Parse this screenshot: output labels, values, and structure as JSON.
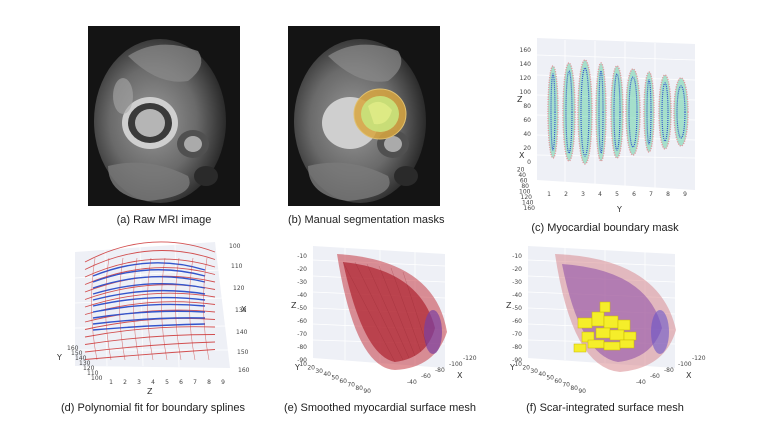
{
  "panels": [
    {
      "id": "a",
      "caption": "(a) Raw MRI image"
    },
    {
      "id": "b",
      "caption": "(b) Manual segmentation masks"
    },
    {
      "id": "c",
      "caption": "(c) Myocardial boundary mask",
      "axes": {
        "z_label": "Z",
        "x_label": "X",
        "y_label": "Y",
        "z_ticks": [
          "160",
          "140",
          "120",
          "100",
          "80",
          "60",
          "40",
          "20",
          "0"
        ],
        "x_ticks": [
          "20",
          "40",
          "60",
          "80",
          "100",
          "120",
          "140",
          "160"
        ],
        "y_ticks": [
          "1",
          "2",
          "3",
          "4",
          "5",
          "6",
          "7",
          "8",
          "9"
        ]
      }
    },
    {
      "id": "d",
      "caption": "(d) Polynomial fit for boundary splines",
      "axes": {
        "x_label": "X",
        "y_label": "Y",
        "z_label": "Z",
        "x_ticks": [
          "100",
          "110",
          "120",
          "130",
          "140",
          "150",
          "160"
        ],
        "y_ticks": [
          "160",
          "150",
          "140",
          "130",
          "120",
          "110",
          "100"
        ],
        "z_ticks": [
          "1",
          "2",
          "3",
          "4",
          "5",
          "6",
          "7",
          "8",
          "9"
        ]
      }
    },
    {
      "id": "e",
      "caption": "(e) Smoothed myocardial surface mesh",
      "axes": {
        "z_label": "Z",
        "x_label": "X",
        "y_label": "Y",
        "z_ticks": [
          "-10",
          "-20",
          "-30",
          "-40",
          "-50",
          "-60",
          "-70",
          "-80",
          "-90"
        ],
        "x_ticks": [
          "-120",
          "-100",
          "-80",
          "-60",
          "-40"
        ],
        "y_ticks": [
          "10",
          "20",
          "30",
          "40",
          "50",
          "60",
          "70",
          "80",
          "90"
        ]
      }
    },
    {
      "id": "f",
      "caption": "(f) Scar-integrated surface mesh",
      "axes": {
        "z_label": "Z",
        "x_label": "X",
        "y_label": "Y",
        "z_ticks": [
          "-10",
          "-20",
          "-30",
          "-40",
          "-50",
          "-60",
          "-70",
          "-80",
          "-90"
        ],
        "x_ticks": [
          "-120",
          "-100",
          "-80",
          "-60",
          "-40"
        ],
        "y_ticks": [
          "10",
          "20",
          "30",
          "40",
          "50",
          "60",
          "70",
          "80",
          "90"
        ]
      }
    }
  ],
  "colors": {
    "inner_boundary": "#3355cc",
    "outer_boundary": "#cc3333",
    "mask_fill": "#4dcc99",
    "mesh_outer": "#c43a44",
    "mesh_inner": "#7a3ea0",
    "scar": "#f5ee2a",
    "segmentation_ring": "#d8a640",
    "segmentation_fill": "#c8e07a"
  }
}
